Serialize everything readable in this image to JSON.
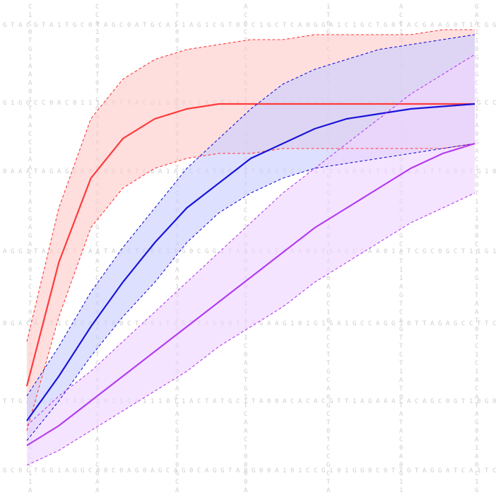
{
  "chart_data": {
    "type": "line",
    "title": "",
    "xlabel": "",
    "ylabel": "",
    "xlim": [
      0,
      14
    ],
    "ylim": [
      0,
      1
    ],
    "grid": false,
    "legend": "none",
    "x": [
      0,
      1,
      2,
      3,
      4,
      5,
      6,
      7,
      8,
      9,
      10,
      11,
      12,
      13,
      14
    ],
    "series": [
      {
        "color": "#ff3b3b",
        "fill": "#ffcccc",
        "mean": [
          0.22,
          0.47,
          0.64,
          0.72,
          0.76,
          0.78,
          0.79,
          0.79,
          0.79,
          0.79,
          0.79,
          0.79,
          0.79,
          0.79,
          0.79
        ],
        "upper": [
          0.31,
          0.58,
          0.76,
          0.84,
          0.88,
          0.9,
          0.91,
          0.92,
          0.92,
          0.93,
          0.93,
          0.93,
          0.93,
          0.94,
          0.94
        ],
        "lower": [
          0.13,
          0.36,
          0.54,
          0.62,
          0.66,
          0.68,
          0.69,
          0.69,
          0.7,
          0.7,
          0.7,
          0.7,
          0.7,
          0.7,
          0.71
        ]
      },
      {
        "color": "#1a14d8",
        "fill": "#cccfff",
        "mean": [
          0.15,
          0.24,
          0.34,
          0.43,
          0.51,
          0.58,
          0.63,
          0.68,
          0.71,
          0.74,
          0.76,
          0.77,
          0.78,
          0.785,
          0.79
        ],
        "upper": [
          0.2,
          0.3,
          0.41,
          0.5,
          0.58,
          0.66,
          0.72,
          0.78,
          0.83,
          0.86,
          0.88,
          0.9,
          0.91,
          0.92,
          0.93
        ],
        "lower": [
          0.11,
          0.19,
          0.28,
          0.36,
          0.43,
          0.51,
          0.57,
          0.61,
          0.64,
          0.66,
          0.67,
          0.68,
          0.69,
          0.7,
          0.71
        ]
      },
      {
        "color": "#b43cf0",
        "fill": "#efd6ff",
        "mean": [
          0.1,
          0.14,
          0.19,
          0.24,
          0.29,
          0.34,
          0.39,
          0.44,
          0.49,
          0.54,
          0.58,
          0.62,
          0.66,
          0.69,
          0.71
        ],
        "upper": [
          0.14,
          0.2,
          0.25,
          0.31,
          0.37,
          0.43,
          0.49,
          0.55,
          0.61,
          0.66,
          0.71,
          0.76,
          0.81,
          0.85,
          0.89
        ],
        "lower": [
          0.06,
          0.09,
          0.13,
          0.17,
          0.21,
          0.25,
          0.3,
          0.34,
          0.38,
          0.43,
          0.47,
          0.51,
          0.55,
          0.58,
          0.61
        ]
      }
    ]
  }
}
